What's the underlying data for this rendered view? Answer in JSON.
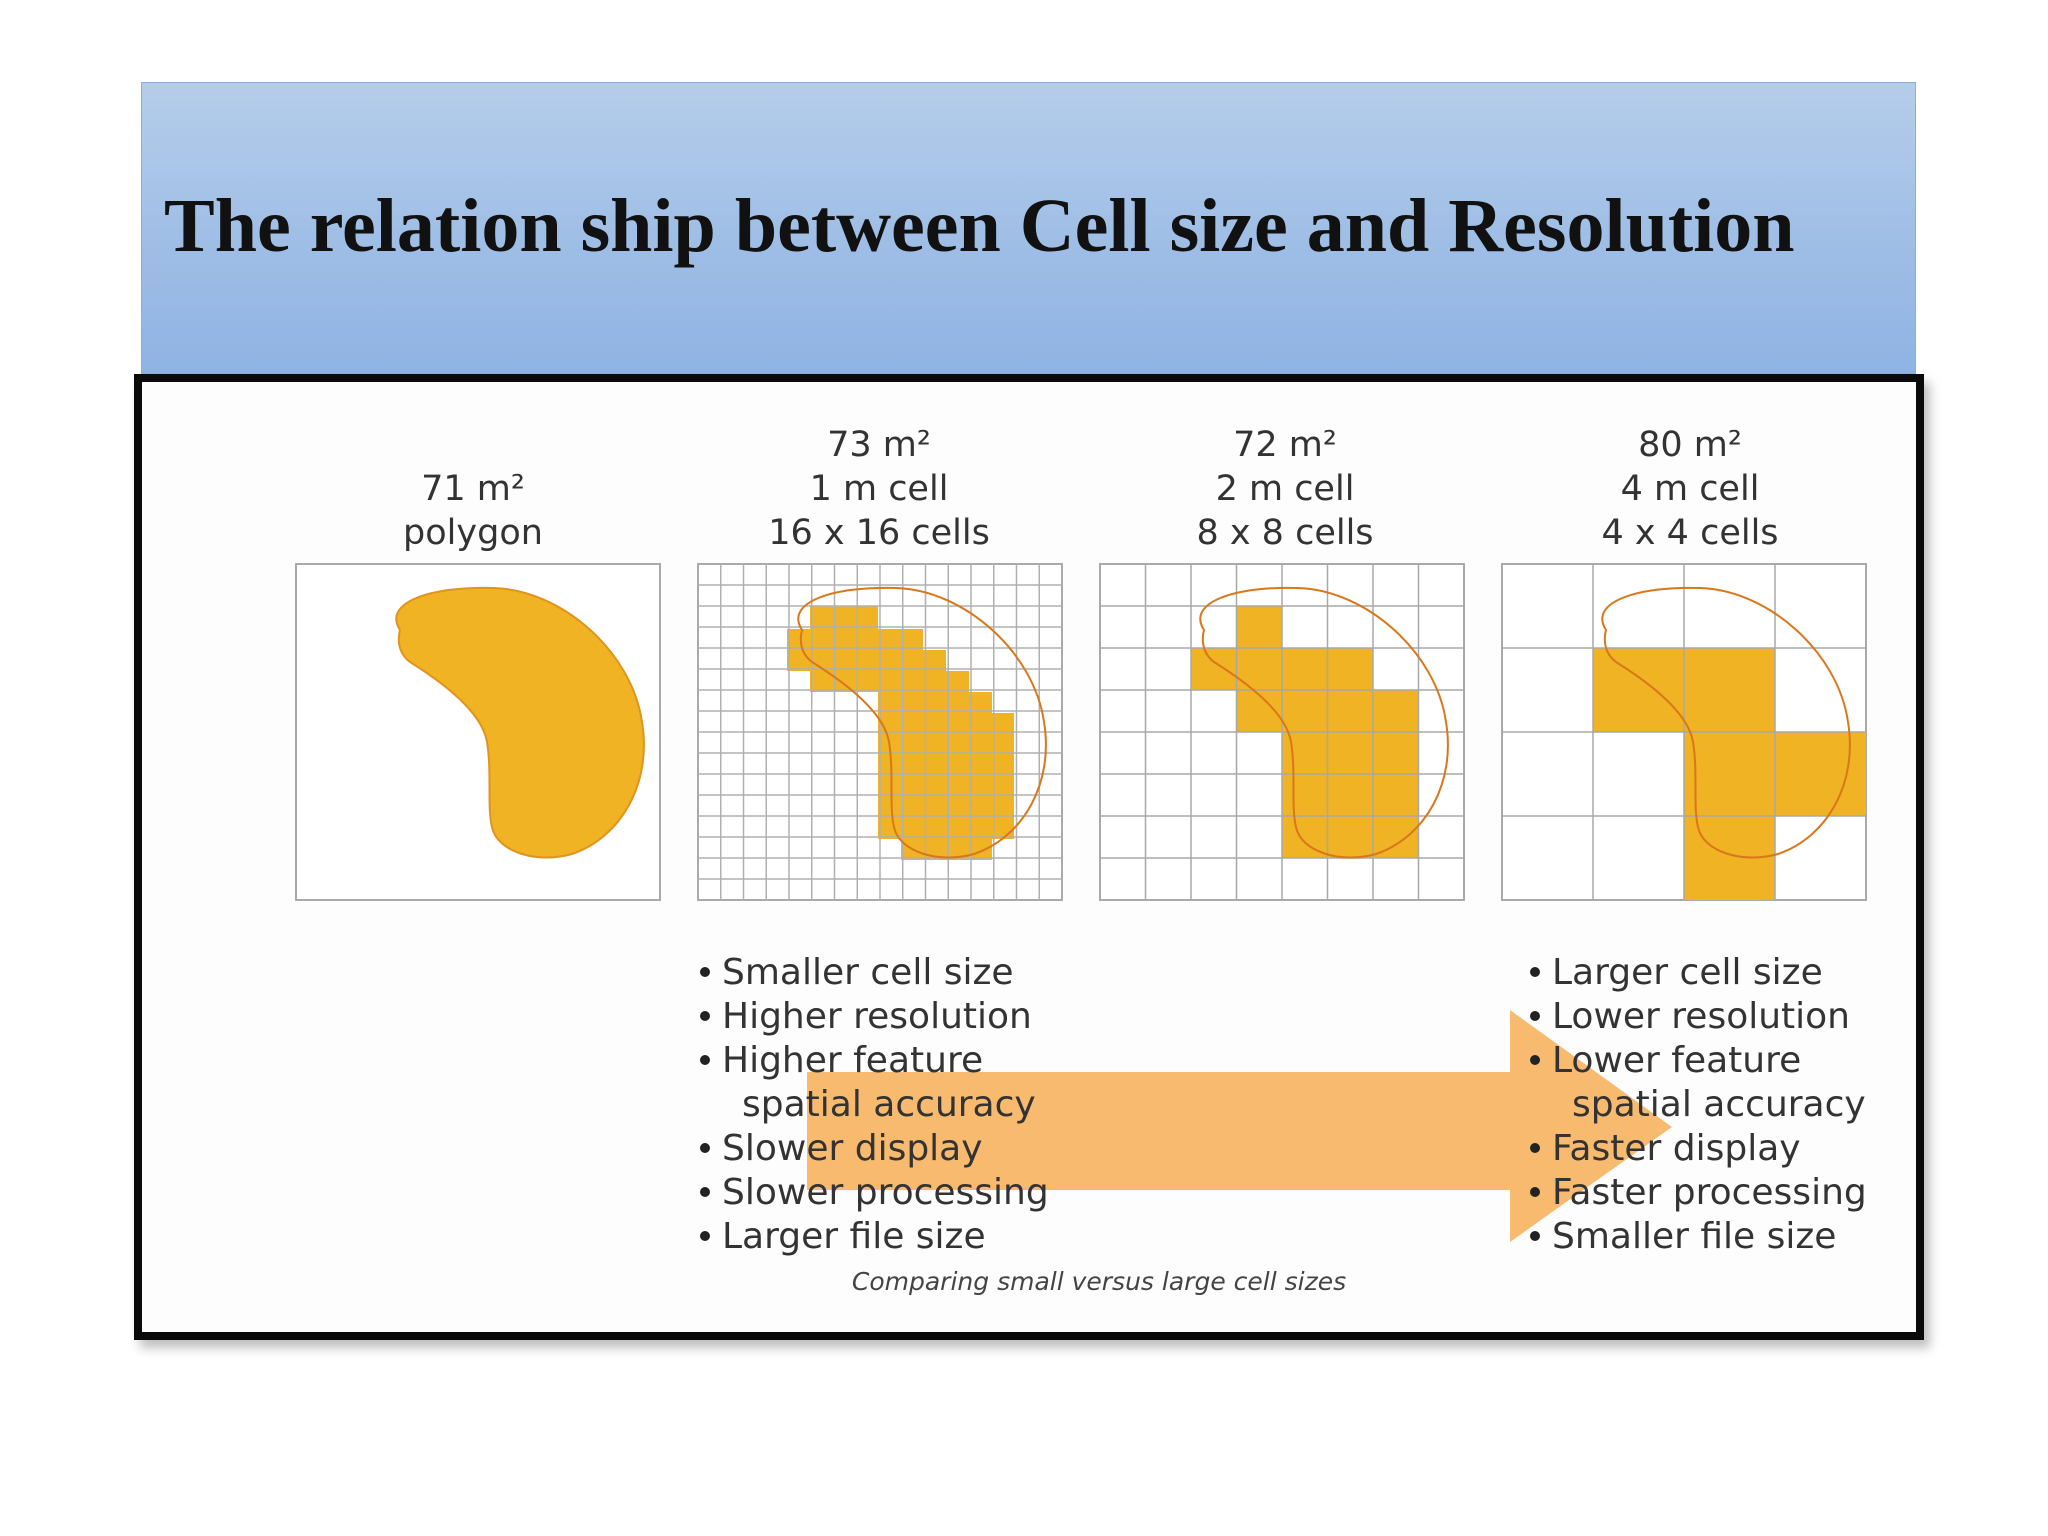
{
  "slide": {
    "title": "The relation ship between Cell size and Resolution"
  },
  "panels": [
    {
      "lines": [
        "71 m²",
        "polygon"
      ]
    },
    {
      "lines": [
        "73 m²",
        "1 m cell",
        "16 x 16 cells"
      ]
    },
    {
      "lines": [
        "72 m²",
        "2 m cell",
        "8 x 8 cells"
      ]
    },
    {
      "lines": [
        "80 m²",
        "4 m cell",
        "4 x 4 cells"
      ]
    }
  ],
  "left_bullets": [
    "Smaller cell size",
    "Higher resolution",
    "Higher feature",
    "spatial accuracy",
    "Slower display",
    "Slower processing",
    "Larger file size"
  ],
  "right_bullets": [
    "Larger cell size",
    "Lower resolution",
    "Lower feature",
    "spatial accuracy",
    "Faster display",
    "Faster processing",
    "Smaller file size"
  ],
  "caption": "Comparing small versus large cell sizes",
  "colors": {
    "fill": "#f0b323",
    "outline": "#d9771a",
    "arrow": "#f6b35e",
    "grid": "#b8b8b8"
  }
}
